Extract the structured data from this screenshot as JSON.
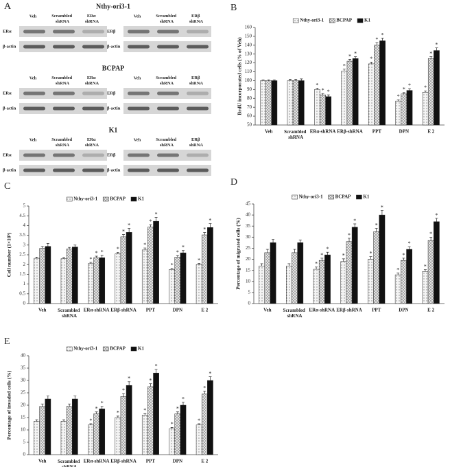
{
  "blots": {
    "panel": "A",
    "groups": [
      {
        "title": "Nthy-ori3-1",
        "blots": [
          {
            "lanes": [
              "Veh",
              "Scrambled shRNA",
              "ERα shRNA"
            ],
            "rows": [
              "ERα",
              "β-actin"
            ]
          },
          {
            "lanes": [
              "Veh",
              "Scrambled shRNA",
              "ERβ shRNA"
            ],
            "rows": [
              "ERβ",
              "β-actin"
            ]
          }
        ]
      },
      {
        "title": "BCPAP",
        "blots": [
          {
            "lanes": [
              "Veh",
              "Scrambled shRNA",
              "ERα shRNA"
            ],
            "rows": [
              "ERα",
              "β-actin"
            ]
          },
          {
            "lanes": [
              "Veh",
              "Scrambled shRNA",
              "ERβ shRNA"
            ],
            "rows": [
              "ERβ",
              "β-actin"
            ]
          }
        ]
      },
      {
        "title": "K1",
        "blots": [
          {
            "lanes": [
              "Veh",
              "Scrambled shRNA",
              "ERα shRNA"
            ],
            "rows": [
              "ERα",
              "β-actin"
            ]
          },
          {
            "lanes": [
              "Veh",
              "Scrambled shRNA",
              "ERβ shRNA"
            ],
            "rows": [
              "ERβ",
              "β-actin"
            ]
          }
        ]
      }
    ]
  },
  "chart_data": [
    {
      "panel": "B",
      "type": "bar",
      "y_label": "BrdU incorporated cells (% of Veh)",
      "categories": [
        "Veh",
        "Scrambled shRNA",
        "ERα-shRNA",
        "ERβ-shRNA",
        "PPT",
        "DPN",
        "E 2"
      ],
      "series": [
        {
          "name": "Nthy-ori3-1",
          "color": "#f4f4f4",
          "pattern": "dots",
          "values": [
            100,
            100,
            90,
            111,
            119,
            77,
            87
          ],
          "errors": [
            1,
            1.5,
            1.5,
            2,
            2,
            1.5,
            1.5
          ],
          "significant": [
            false,
            false,
            true,
            true,
            true,
            true,
            true
          ]
        },
        {
          "name": "BCPAP",
          "color": "#9a9a9a",
          "pattern": "crosshatch",
          "values": [
            100,
            100,
            84,
            122,
            140,
            85,
            125
          ],
          "errors": [
            1,
            1.5,
            1.5,
            2,
            3,
            1.5,
            2
          ],
          "significant": [
            false,
            false,
            true,
            true,
            true,
            true,
            true
          ]
        },
        {
          "name": "K1",
          "color": "#111111",
          "pattern": "solid",
          "values": [
            100,
            100,
            82,
            125,
            145,
            89,
            134
          ],
          "errors": [
            1,
            2,
            2,
            2,
            3,
            2,
            3
          ],
          "significant": [
            false,
            false,
            true,
            true,
            true,
            true,
            true
          ]
        }
      ],
      "ylim": [
        50,
        160
      ],
      "yticks": [
        50,
        60,
        70,
        80,
        90,
        100,
        110,
        120,
        130,
        140,
        150,
        160
      ],
      "legend": "top",
      "significance_mark": "*"
    },
    {
      "panel": "C",
      "type": "bar",
      "y_label": "Cell number (1×10⁵)",
      "categories": [
        "Veh",
        "Scrambled shRNA",
        "ERα-shRNA",
        "ERβ-shRNA",
        "PPT",
        "DPN",
        "E 2"
      ],
      "series": [
        {
          "name": "Nthy-ori3-1",
          "color": "#f4f4f4",
          "pattern": "dots",
          "values": [
            2.32,
            2.3,
            2.05,
            2.55,
            2.75,
            1.75,
            2.0
          ],
          "errors": [
            0.06,
            0.06,
            0.06,
            0.08,
            0.1,
            0.05,
            0.06
          ],
          "significant": [
            false,
            false,
            true,
            true,
            true,
            true,
            true
          ]
        },
        {
          "name": "BCPAP",
          "color": "#9a9a9a",
          "pattern": "crosshatch",
          "values": [
            2.83,
            2.8,
            2.35,
            3.42,
            3.92,
            2.38,
            3.52
          ],
          "errors": [
            0.1,
            0.08,
            0.08,
            0.12,
            0.12,
            0.08,
            0.12
          ],
          "significant": [
            false,
            false,
            true,
            true,
            true,
            true,
            true
          ]
        },
        {
          "name": "K1",
          "color": "#111111",
          "pattern": "solid",
          "values": [
            2.93,
            2.9,
            2.35,
            3.65,
            4.22,
            2.6,
            3.9
          ],
          "errors": [
            0.15,
            0.1,
            0.12,
            0.2,
            0.2,
            0.12,
            0.2
          ],
          "significant": [
            false,
            false,
            true,
            true,
            true,
            true,
            true
          ]
        }
      ],
      "ylim": [
        0,
        5
      ],
      "yticks": [
        0,
        0.5,
        1,
        1.5,
        2,
        2.5,
        3,
        3.5,
        4,
        4.5,
        5
      ],
      "legend": "top",
      "significance_mark": "*"
    },
    {
      "panel": "D",
      "type": "bar",
      "y_label": "Percentage of migrated cells (%)",
      "categories": [
        "Veh",
        "Scrambled shRNA",
        "ERα-shRNA",
        "ERβ-shRNA",
        "PPT",
        "DPN",
        "E 2"
      ],
      "series": [
        {
          "name": "Nthy-ori3-1",
          "color": "#f4f4f4",
          "pattern": "dots",
          "values": [
            17,
            17,
            15.5,
            19,
            20,
            13,
            14.5
          ],
          "errors": [
            1,
            1,
            1,
            1.2,
            1.2,
            0.8,
            0.8
          ],
          "significant": [
            false,
            false,
            true,
            true,
            true,
            true,
            true
          ]
        },
        {
          "name": "BCPAP",
          "color": "#9a9a9a",
          "pattern": "crosshatch",
          "values": [
            23,
            23,
            19.5,
            28,
            32.5,
            19.5,
            28.5
          ],
          "errors": [
            1.5,
            1.5,
            1,
            1.5,
            1.5,
            1,
            1.5
          ],
          "significant": [
            false,
            false,
            true,
            true,
            true,
            true,
            true
          ]
        },
        {
          "name": "K1",
          "color": "#111111",
          "pattern": "solid",
          "values": [
            27.5,
            27.5,
            22,
            34.5,
            40,
            24.5,
            37
          ],
          "errors": [
            1.5,
            1.2,
            1.2,
            1.5,
            2,
            1.2,
            1.5
          ],
          "significant": [
            false,
            false,
            true,
            true,
            true,
            true,
            true
          ]
        }
      ],
      "ylim": [
        0,
        45
      ],
      "yticks": [
        0,
        5,
        10,
        15,
        20,
        25,
        30,
        35,
        40,
        45
      ],
      "legend": "top",
      "significance_mark": "*"
    },
    {
      "panel": "E",
      "type": "bar",
      "y_label": "Percentage of invaded cells (%)",
      "categories": [
        "Veh",
        "Scrambled shRNA",
        "ERα-shRNA",
        "ERβ-shRNA",
        "PPT",
        "DPN",
        "E 2"
      ],
      "series": [
        {
          "name": "Nthy-ori3-1",
          "color": "#f4f4f4",
          "pattern": "dots",
          "values": [
            13.5,
            13.5,
            12,
            15,
            16,
            10.5,
            12
          ],
          "errors": [
            0.6,
            0.6,
            0.5,
            0.6,
            0.6,
            0.5,
            0.5
          ],
          "significant": [
            false,
            false,
            true,
            true,
            true,
            true,
            true
          ]
        },
        {
          "name": "BCPAP",
          "color": "#9a9a9a",
          "pattern": "crosshatch",
          "values": [
            19.5,
            19.5,
            16.5,
            23.5,
            27.5,
            16.5,
            24.5
          ],
          "errors": [
            1,
            1,
            0.8,
            1.2,
            1.2,
            0.8,
            1.2
          ],
          "significant": [
            false,
            false,
            true,
            true,
            true,
            true,
            true
          ]
        },
        {
          "name": "K1",
          "color": "#111111",
          "pattern": "solid",
          "values": [
            22.5,
            22.5,
            18.5,
            28,
            33,
            20,
            30
          ],
          "errors": [
            1.2,
            1.2,
            1,
            1.5,
            1.5,
            1.2,
            1.5
          ],
          "significant": [
            false,
            false,
            true,
            true,
            true,
            true,
            true
          ]
        }
      ],
      "ylim": [
        0,
        40
      ],
      "yticks": [
        0,
        5,
        10,
        15,
        20,
        25,
        30,
        35,
        40
      ],
      "legend": "top",
      "significance_mark": "*"
    }
  ]
}
